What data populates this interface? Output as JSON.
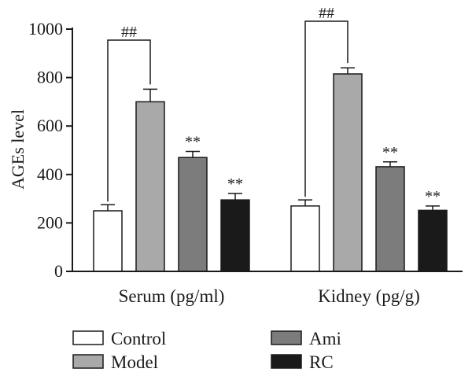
{
  "chart_data": {
    "type": "bar",
    "ylabel": "AGEs level",
    "ylim": [
      0,
      1000
    ],
    "yticks": [
      0,
      200,
      400,
      600,
      800,
      1000
    ],
    "grid": false,
    "legend_position": "bottom",
    "categories": [
      "Serum (pg/ml)",
      "Kidney (pg/g)"
    ],
    "series": [
      {
        "name": "Control",
        "color": "#ffffff",
        "values": [
          250,
          270
        ],
        "errors": [
          25,
          25
        ]
      },
      {
        "name": "Model",
        "color": "#a9a9a9",
        "values": [
          700,
          815
        ],
        "errors": [
          52,
          25
        ]
      },
      {
        "name": "Ami",
        "color": "#7c7c7c",
        "values": [
          470,
          432
        ],
        "errors": [
          25,
          20
        ]
      },
      {
        "name": "RC",
        "color": "#1a1a1a",
        "values": [
          295,
          252
        ],
        "errors": [
          27,
          18
        ]
      }
    ],
    "significance": [
      {
        "category": 0,
        "series": 2,
        "label": "**"
      },
      {
        "category": 0,
        "series": 3,
        "label": "**"
      },
      {
        "category": 1,
        "series": 2,
        "label": "**"
      },
      {
        "category": 1,
        "series": 3,
        "label": "**"
      }
    ],
    "brackets": [
      {
        "category": 0,
        "from_series": 0,
        "to_series": 1,
        "label": "##"
      },
      {
        "category": 1,
        "from_series": 0,
        "to_series": 1,
        "label": "##"
      }
    ]
  }
}
